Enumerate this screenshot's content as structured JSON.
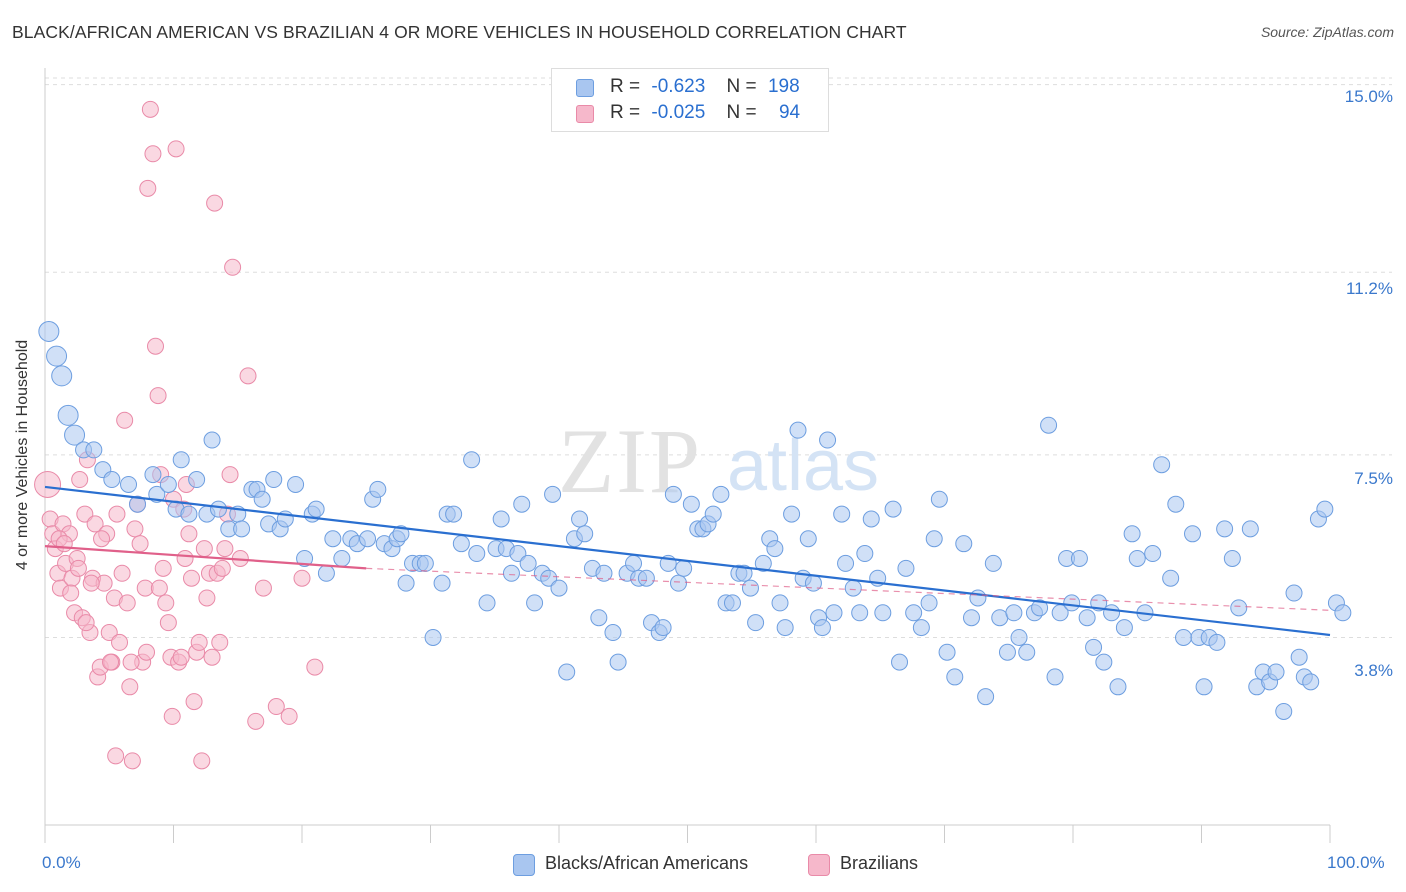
{
  "header": {
    "title": "BLACK/AFRICAN AMERICAN VS BRAZILIAN 4 OR MORE VEHICLES IN HOUSEHOLD CORRELATION CHART",
    "source": "Source: ZipAtlas.com"
  },
  "watermark": {
    "zip": "ZIP",
    "atlas": "atlas"
  },
  "legend_top": {
    "rows": [
      {
        "r_label": "R =",
        "r_value": "-0.623",
        "n_label": "N =",
        "n_value": "198"
      },
      {
        "r_label": "R =",
        "r_value": "-0.025",
        "n_label": "N =",
        "n_value": "94"
      }
    ]
  },
  "legend_bottom": {
    "items": [
      {
        "label": "Blacks/African Americans"
      },
      {
        "label": "Brazilians"
      }
    ]
  },
  "colors": {
    "blue_fill": "#a9c6f0",
    "blue_stroke": "#6d9ee0",
    "blue_line": "#2a6fd0",
    "pink_fill": "#f6b8cb",
    "pink_stroke": "#e98aa8",
    "pink_line": "#e0608a",
    "tick_text": "#3a78cc",
    "grid": "#dddddd"
  },
  "chart_data": {
    "type": "scatter",
    "title": "BLACK/AFRICAN AMERICAN VS BRAZILIAN 4 OR MORE VEHICLES IN HOUSEHOLD CORRELATION CHART",
    "xlabel": "",
    "ylabel": "4 or more Vehicles in Household",
    "xlim": [
      0,
      100
    ],
    "ylim": [
      0,
      15.5
    ],
    "x_tick_labels": [
      "0.0%",
      "100.0%"
    ],
    "y_ticks": [
      3.8,
      7.5,
      11.2,
      15.0
    ],
    "y_tick_labels": [
      "3.8%",
      "7.5%",
      "11.2%",
      "15.0%"
    ],
    "grid": true,
    "legend_placement": "top-center",
    "series": [
      {
        "name": "Blacks/African Americans",
        "r": -0.623,
        "n": 198,
        "trend": {
          "x": [
            0,
            100
          ],
          "y": [
            6.85,
            3.85
          ]
        },
        "points": [
          [
            0.3,
            10.0
          ],
          [
            0.9,
            9.5
          ],
          [
            1.3,
            9.1
          ],
          [
            1.8,
            8.3
          ],
          [
            2.3,
            7.9
          ],
          [
            3.0,
            7.6
          ],
          [
            3.8,
            7.6
          ],
          [
            4.5,
            7.2
          ],
          [
            5.2,
            7.0
          ],
          [
            6.5,
            6.9
          ],
          [
            7.2,
            6.5
          ],
          [
            8.4,
            7.1
          ],
          [
            8.7,
            6.7
          ],
          [
            9.6,
            6.9
          ],
          [
            10.2,
            6.4
          ],
          [
            10.6,
            7.4
          ],
          [
            11.2,
            6.3
          ],
          [
            11.8,
            7.0
          ],
          [
            12.6,
            6.3
          ],
          [
            13.0,
            7.8
          ],
          [
            13.5,
            6.4
          ],
          [
            14.3,
            6.0
          ],
          [
            15.0,
            6.3
          ],
          [
            15.3,
            6.0
          ],
          [
            16.1,
            6.8
          ],
          [
            16.5,
            6.8
          ],
          [
            16.9,
            6.6
          ],
          [
            17.4,
            6.1
          ],
          [
            17.8,
            7.0
          ],
          [
            18.3,
            6.0
          ],
          [
            18.7,
            6.2
          ],
          [
            19.5,
            6.9
          ],
          [
            20.2,
            5.4
          ],
          [
            20.8,
            6.3
          ],
          [
            21.1,
            6.4
          ],
          [
            21.9,
            5.1
          ],
          [
            22.4,
            5.8
          ],
          [
            23.1,
            5.4
          ],
          [
            23.8,
            5.8
          ],
          [
            24.3,
            5.7
          ],
          [
            25.1,
            5.8
          ],
          [
            25.5,
            6.6
          ],
          [
            25.9,
            6.8
          ],
          [
            26.4,
            5.7
          ],
          [
            27.0,
            5.6
          ],
          [
            27.4,
            5.8
          ],
          [
            27.7,
            5.9
          ],
          [
            28.1,
            4.9
          ],
          [
            28.6,
            5.3
          ],
          [
            29.2,
            5.3
          ],
          [
            29.6,
            5.3
          ],
          [
            30.2,
            3.8
          ],
          [
            30.9,
            4.9
          ],
          [
            31.3,
            6.3
          ],
          [
            31.8,
            6.3
          ],
          [
            32.4,
            5.7
          ],
          [
            33.2,
            7.4
          ],
          [
            33.6,
            5.5
          ],
          [
            34.4,
            4.5
          ],
          [
            35.1,
            5.6
          ],
          [
            35.5,
            6.2
          ],
          [
            35.9,
            5.6
          ],
          [
            36.3,
            5.1
          ],
          [
            36.8,
            5.5
          ],
          [
            37.1,
            6.5
          ],
          [
            37.6,
            5.3
          ],
          [
            38.1,
            4.5
          ],
          [
            38.7,
            5.1
          ],
          [
            39.2,
            5.0
          ],
          [
            39.5,
            6.7
          ],
          [
            40.0,
            4.8
          ],
          [
            40.6,
            3.1
          ],
          [
            41.2,
            5.8
          ],
          [
            41.6,
            6.2
          ],
          [
            42.0,
            5.9
          ],
          [
            42.6,
            5.2
          ],
          [
            43.1,
            4.2
          ],
          [
            43.5,
            5.1
          ],
          [
            44.2,
            3.9
          ],
          [
            44.6,
            3.3
          ],
          [
            45.3,
            5.1
          ],
          [
            45.8,
            5.3
          ],
          [
            46.2,
            5.0
          ],
          [
            46.8,
            5.0
          ],
          [
            47.2,
            4.1
          ],
          [
            47.8,
            3.9
          ],
          [
            48.1,
            4.0
          ],
          [
            48.5,
            5.3
          ],
          [
            48.9,
            6.7
          ],
          [
            49.3,
            4.9
          ],
          [
            49.7,
            5.2
          ],
          [
            50.3,
            6.5
          ],
          [
            50.8,
            6.0
          ],
          [
            51.2,
            6.0
          ],
          [
            51.6,
            6.1
          ],
          [
            52.0,
            6.3
          ],
          [
            52.6,
            6.7
          ],
          [
            53.0,
            4.5
          ],
          [
            53.5,
            4.5
          ],
          [
            54.0,
            5.1
          ],
          [
            54.4,
            5.1
          ],
          [
            54.9,
            4.8
          ],
          [
            55.3,
            4.1
          ],
          [
            55.9,
            5.3
          ],
          [
            56.4,
            5.8
          ],
          [
            56.8,
            5.6
          ],
          [
            57.2,
            4.5
          ],
          [
            57.6,
            4.0
          ],
          [
            58.1,
            6.3
          ],
          [
            58.6,
            8.0
          ],
          [
            59.0,
            5.0
          ],
          [
            59.4,
            5.8
          ],
          [
            59.8,
            4.9
          ],
          [
            60.2,
            4.2
          ],
          [
            60.5,
            4.0
          ],
          [
            60.9,
            7.8
          ],
          [
            61.4,
            4.3
          ],
          [
            62.0,
            6.3
          ],
          [
            62.3,
            5.3
          ],
          [
            62.9,
            4.8
          ],
          [
            63.4,
            4.3
          ],
          [
            63.8,
            5.5
          ],
          [
            64.3,
            6.2
          ],
          [
            64.8,
            5.0
          ],
          [
            65.2,
            4.3
          ],
          [
            66.0,
            6.4
          ],
          [
            66.5,
            3.3
          ],
          [
            67.0,
            5.2
          ],
          [
            67.6,
            4.3
          ],
          [
            68.2,
            4.0
          ],
          [
            68.8,
            4.5
          ],
          [
            69.2,
            5.8
          ],
          [
            69.6,
            6.6
          ],
          [
            70.2,
            3.5
          ],
          [
            70.8,
            3.0
          ],
          [
            71.5,
            5.7
          ],
          [
            72.1,
            4.2
          ],
          [
            72.6,
            4.6
          ],
          [
            73.2,
            2.6
          ],
          [
            73.8,
            5.3
          ],
          [
            74.3,
            4.2
          ],
          [
            74.9,
            3.5
          ],
          [
            75.4,
            4.3
          ],
          [
            75.8,
            3.8
          ],
          [
            76.4,
            3.5
          ],
          [
            77.0,
            4.3
          ],
          [
            77.4,
            4.4
          ],
          [
            78.1,
            8.1
          ],
          [
            78.6,
            3.0
          ],
          [
            79.0,
            4.3
          ],
          [
            79.5,
            5.4
          ],
          [
            79.9,
            4.5
          ],
          [
            80.5,
            5.4
          ],
          [
            81.1,
            4.2
          ],
          [
            81.6,
            3.6
          ],
          [
            82.0,
            4.5
          ],
          [
            82.4,
            3.3
          ],
          [
            83.0,
            4.3
          ],
          [
            83.5,
            2.8
          ],
          [
            84.0,
            4.0
          ],
          [
            84.6,
            5.9
          ],
          [
            85.0,
            5.4
          ],
          [
            85.6,
            4.3
          ],
          [
            86.2,
            5.5
          ],
          [
            86.9,
            7.3
          ],
          [
            87.6,
            5.0
          ],
          [
            88.0,
            6.5
          ],
          [
            88.6,
            3.8
          ],
          [
            89.3,
            5.9
          ],
          [
            89.8,
            3.8
          ],
          [
            90.2,
            2.8
          ],
          [
            90.6,
            3.8
          ],
          [
            91.2,
            3.7
          ],
          [
            91.8,
            6.0
          ],
          [
            92.4,
            5.4
          ],
          [
            92.9,
            4.4
          ],
          [
            93.8,
            6.0
          ],
          [
            94.3,
            2.8
          ],
          [
            94.8,
            3.1
          ],
          [
            95.3,
            2.9
          ],
          [
            95.8,
            3.1
          ],
          [
            96.4,
            2.3
          ],
          [
            97.2,
            4.7
          ],
          [
            97.6,
            3.4
          ],
          [
            98.0,
            3.0
          ],
          [
            98.5,
            2.9
          ],
          [
            99.1,
            6.2
          ],
          [
            99.6,
            6.4
          ],
          [
            100.5,
            4.5
          ],
          [
            101.0,
            4.3
          ]
        ]
      },
      {
        "name": "Brazilians",
        "r": -0.025,
        "n": 94,
        "trend": {
          "x": [
            0,
            25
          ],
          "y": [
            5.65,
            5.2
          ]
        },
        "trend_extension": {
          "x": [
            25,
            100
          ],
          "y": [
            5.2,
            4.35
          ]
        },
        "points": [
          [
            0.2,
            6.9
          ],
          [
            0.4,
            6.2
          ],
          [
            0.6,
            5.9
          ],
          [
            0.8,
            5.6
          ],
          [
            1.0,
            5.1
          ],
          [
            1.2,
            4.8
          ],
          [
            1.4,
            6.1
          ],
          [
            1.6,
            5.3
          ],
          [
            1.9,
            5.9
          ],
          [
            2.1,
            5.0
          ],
          [
            2.3,
            4.3
          ],
          [
            2.5,
            5.4
          ],
          [
            2.7,
            7.0
          ],
          [
            2.9,
            4.2
          ],
          [
            3.1,
            6.3
          ],
          [
            3.3,
            7.4
          ],
          [
            3.5,
            3.9
          ],
          [
            3.7,
            5.0
          ],
          [
            3.9,
            6.1
          ],
          [
            4.1,
            3.0
          ],
          [
            4.3,
            3.2
          ],
          [
            4.6,
            4.9
          ],
          [
            4.8,
            5.9
          ],
          [
            5.0,
            3.9
          ],
          [
            5.2,
            3.3
          ],
          [
            5.4,
            4.6
          ],
          [
            5.6,
            6.3
          ],
          [
            5.8,
            3.7
          ],
          [
            6.0,
            5.1
          ],
          [
            6.2,
            8.2
          ],
          [
            6.4,
            4.5
          ],
          [
            6.6,
            2.8
          ],
          [
            6.8,
            1.3
          ],
          [
            7.0,
            6.0
          ],
          [
            7.2,
            6.5
          ],
          [
            7.4,
            5.7
          ],
          [
            7.6,
            3.3
          ],
          [
            7.8,
            4.8
          ],
          [
            8.0,
            12.9
          ],
          [
            8.2,
            14.5
          ],
          [
            8.4,
            13.6
          ],
          [
            8.6,
            9.7
          ],
          [
            8.8,
            8.7
          ],
          [
            9.0,
            7.1
          ],
          [
            9.2,
            5.2
          ],
          [
            9.4,
            4.5
          ],
          [
            9.6,
            4.1
          ],
          [
            9.8,
            3.4
          ],
          [
            10.0,
            6.6
          ],
          [
            10.2,
            13.7
          ],
          [
            10.4,
            3.3
          ],
          [
            10.6,
            3.4
          ],
          [
            10.8,
            6.4
          ],
          [
            11.0,
            6.9
          ],
          [
            11.2,
            5.9
          ],
          [
            11.4,
            5.0
          ],
          [
            11.6,
            2.5
          ],
          [
            11.8,
            3.5
          ],
          [
            12.0,
            3.7
          ],
          [
            12.2,
            1.3
          ],
          [
            12.4,
            5.6
          ],
          [
            12.6,
            4.6
          ],
          [
            12.8,
            5.1
          ],
          [
            13.0,
            3.4
          ],
          [
            13.2,
            12.6
          ],
          [
            13.4,
            5.1
          ],
          [
            13.6,
            3.7
          ],
          [
            13.8,
            5.2
          ],
          [
            14.0,
            5.6
          ],
          [
            14.2,
            6.3
          ],
          [
            14.4,
            7.1
          ],
          [
            14.6,
            11.3
          ],
          [
            15.2,
            5.4
          ],
          [
            15.8,
            9.1
          ],
          [
            16.4,
            2.1
          ],
          [
            17.0,
            4.8
          ],
          [
            18.0,
            2.4
          ],
          [
            19.0,
            2.2
          ],
          [
            20.0,
            5.0
          ],
          [
            21.0,
            3.2
          ],
          [
            1.1,
            5.8
          ],
          [
            1.5,
            5.7
          ],
          [
            2.0,
            4.7
          ],
          [
            2.6,
            5.2
          ],
          [
            3.2,
            4.1
          ],
          [
            3.6,
            4.9
          ],
          [
            4.4,
            5.8
          ],
          [
            5.1,
            3.3
          ],
          [
            5.5,
            1.4
          ],
          [
            6.7,
            3.3
          ],
          [
            7.9,
            3.5
          ],
          [
            8.9,
            4.8
          ],
          [
            9.9,
            2.2
          ],
          [
            10.9,
            5.4
          ]
        ]
      }
    ]
  }
}
